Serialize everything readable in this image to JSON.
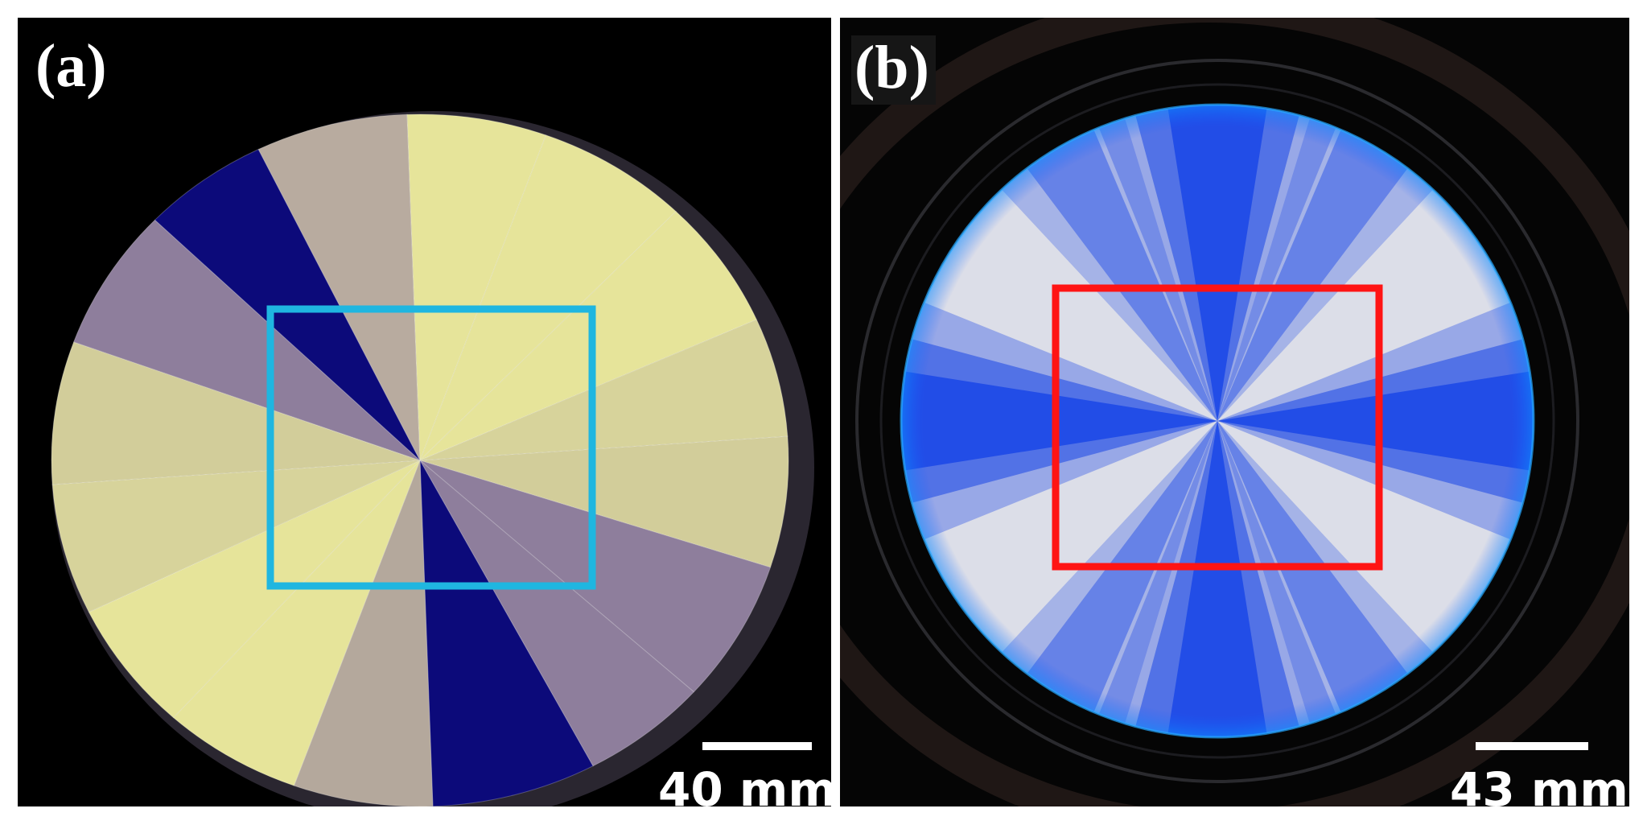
{
  "figure": {
    "panels": [
      {
        "label": "(a)",
        "scale_bar_text": "40 mm",
        "content": "sector-pattern-wafer",
        "roi_box_color": "#1fb6e0"
      },
      {
        "label": "(b)",
        "scale_bar_text": "43 mm",
        "content": "radial-blue-pattern-wafer",
        "roi_box_color": "#ff1414"
      }
    ],
    "colors": {
      "background": "#000000",
      "sector_yellow": "#e6e49a",
      "sector_beige": "#d2cd9a",
      "sector_grey": "#b4a89c",
      "sector_purple": "#8e7e9c",
      "sector_navy": "#0c0a7a",
      "radial_blue": "#1a46e6",
      "radial_white": "#dcdee8"
    }
  }
}
